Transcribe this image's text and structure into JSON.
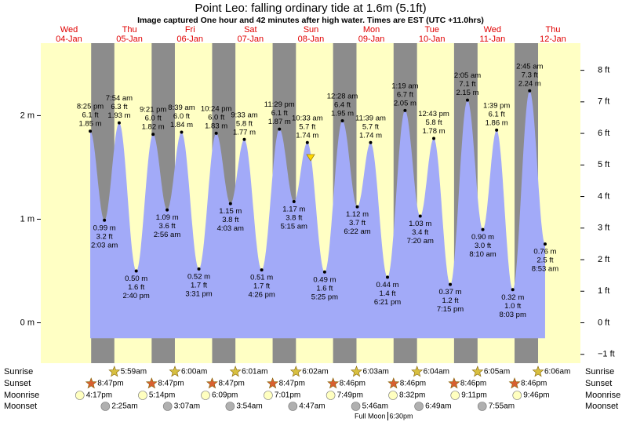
{
  "chart_data": {
    "type": "tide",
    "title": "Point Leo: falling  ordinary tide at 1.6m (5.1ft)",
    "subtitle": "Image captured One hour and 42 minutes after high water. Times are EST (UTC +11.0hrs)",
    "xlim": [
      0.8,
      214.9
    ],
    "ylim": [
      -0.39,
      2.7
    ],
    "yticks": [
      {
        "value": 0,
        "label": "0 m"
      },
      {
        "value": 1,
        "label": "1 m"
      },
      {
        "value": 2,
        "label": "2 m"
      }
    ],
    "y2lim": [
      -1.28,
      8.86
    ],
    "y2ticks": [
      {
        "value": -1,
        "label": "−1 ft"
      },
      {
        "value": 0,
        "label": "0 ft"
      },
      {
        "value": 1,
        "label": "1 ft"
      },
      {
        "value": 2,
        "label": "2 ft"
      },
      {
        "value": 3,
        "label": "3 ft"
      },
      {
        "value": 4,
        "label": "4 ft"
      },
      {
        "value": 5,
        "label": "5 ft"
      },
      {
        "value": 6,
        "label": "6 ft"
      },
      {
        "value": 7,
        "label": "7 ft"
      },
      {
        "value": 8,
        "label": "8 ft"
      }
    ],
    "row_labels": [
      "Sunrise",
      "Sunset",
      "Moonrise",
      "Moonset"
    ],
    "days": [
      {
        "weekday": "Wed",
        "date": "04-Jan",
        "sunrise": null,
        "sunset": "8:47pm",
        "moonrise": "4:17pm",
        "moonset": null,
        "tides": [
          {
            "time": "8:25 pm",
            "height_m": {
              "value": 1.85,
              "label": "1.85 m"
            },
            "height_ft": {
              "value": 6.1,
              "label": "6.1 ft"
            }
          }
        ]
      },
      {
        "weekday": "Thu",
        "date": "05-Jan",
        "sunrise": "5:59am",
        "sunset": "8:47pm",
        "moonrise": "5:14pm",
        "moonset": "2:25am",
        "tides": [
          {
            "time": "2:03 am",
            "height_m": {
              "value": 0.99,
              "label": "0.99 m"
            },
            "height_ft": {
              "value": 3.2,
              "label": "3.2 ft"
            }
          },
          {
            "time": "7:54 am",
            "height_m": {
              "value": 1.93,
              "label": "1.93 m"
            },
            "height_ft": {
              "value": 6.3,
              "label": "6.3 ft"
            }
          },
          {
            "time": "2:40 pm",
            "height_m": {
              "value": 0.5,
              "label": "0.50 m"
            },
            "height_ft": {
              "value": 1.6,
              "label": "1.6 ft"
            }
          },
          {
            "time": "9:21 pm",
            "height_m": {
              "value": 1.82,
              "label": "1.82 m"
            },
            "height_ft": {
              "value": 6.0,
              "label": "6.0 ft"
            }
          }
        ]
      },
      {
        "weekday": "Fri",
        "date": "06-Jan",
        "sunrise": "6:00am",
        "sunset": "8:47pm",
        "moonrise": "6:09pm",
        "moonset": "3:07am",
        "tides": [
          {
            "time": "2:56 am",
            "height_m": {
              "value": 1.09,
              "label": "1.09 m"
            },
            "height_ft": {
              "value": 3.6,
              "label": "3.6 ft"
            }
          },
          {
            "time": "8:39 am",
            "height_m": {
              "value": 1.84,
              "label": "1.84 m"
            },
            "height_ft": {
              "value": 6.0,
              "label": "6.0 ft"
            }
          },
          {
            "time": "3:31 pm",
            "height_m": {
              "value": 0.52,
              "label": "0.52 m"
            },
            "height_ft": {
              "value": 1.7,
              "label": "1.7 ft"
            }
          },
          {
            "time": "10:24 pm",
            "height_m": {
              "value": 1.83,
              "label": "1.83 m"
            },
            "height_ft": {
              "value": 6.0,
              "label": "6.0 ft"
            }
          }
        ]
      },
      {
        "weekday": "Sat",
        "date": "07-Jan",
        "sunrise": "6:01am",
        "sunset": "8:47pm",
        "moonrise": "7:01pm",
        "moonset": "3:54am",
        "tides": [
          {
            "time": "4:03 am",
            "height_m": {
              "value": 1.15,
              "label": "1.15 m"
            },
            "height_ft": {
              "value": 3.8,
              "label": "3.8 ft"
            }
          },
          {
            "time": "9:33 am",
            "height_m": {
              "value": 1.77,
              "label": "1.77 m"
            },
            "height_ft": {
              "value": 5.8,
              "label": "5.8 ft"
            }
          },
          {
            "time": "4:26 pm",
            "height_m": {
              "value": 0.51,
              "label": "0.51 m"
            },
            "height_ft": {
              "value": 1.7,
              "label": "1.7 ft"
            }
          },
          {
            "time": "11:29 pm",
            "height_m": {
              "value": 1.87,
              "label": "1.87 m"
            },
            "height_ft": {
              "value": 6.1,
              "label": "6.1 ft"
            }
          }
        ]
      },
      {
        "weekday": "Sun",
        "date": "08-Jan",
        "sunrise": "6:02am",
        "sunset": "8:46pm",
        "moonrise": "7:49pm",
        "moonset": "4:47am",
        "tides": [
          {
            "time": "5:15 am",
            "height_m": {
              "value": 1.17,
              "label": "1.17 m"
            },
            "height_ft": {
              "value": 3.8,
              "label": "3.8 ft"
            }
          },
          {
            "time": "10:33 am",
            "height_m": {
              "value": 1.74,
              "label": "1.74 m"
            },
            "height_ft": {
              "value": 5.7,
              "label": "5.7 ft"
            }
          },
          {
            "time": "5:25 pm",
            "height_m": {
              "value": 0.49,
              "label": "0.49 m"
            },
            "height_ft": {
              "value": 1.6,
              "label": "1.6 ft"
            }
          }
        ]
      },
      {
        "weekday": "Mon",
        "date": "09-Jan",
        "sunrise": "6:03am",
        "sunset": "8:46pm",
        "moonrise": "8:32pm",
        "moonset": "5:46am",
        "phase": {
          "name": "Full Moon",
          "time": "6:30pm"
        },
        "tides": [
          {
            "time": "12:28 am",
            "height_m": {
              "value": 1.95,
              "label": "1.95 m"
            },
            "height_ft": {
              "value": 6.4,
              "label": "6.4 ft"
            }
          },
          {
            "time": "6:22 am",
            "height_m": {
              "value": 1.12,
              "label": "1.12 m"
            },
            "height_ft": {
              "value": 3.7,
              "label": "3.7 ft"
            }
          },
          {
            "time": "11:39 am",
            "height_m": {
              "value": 1.74,
              "label": "1.74 m"
            },
            "height_ft": {
              "value": 5.7,
              "label": "5.7 ft"
            }
          },
          {
            "time": "6:21 pm",
            "height_m": {
              "value": 0.44,
              "label": "0.44 m"
            },
            "height_ft": {
              "value": 1.4,
              "label": "1.4 ft"
            }
          }
        ]
      },
      {
        "weekday": "Tue",
        "date": "10-Jan",
        "sunrise": "6:04am",
        "sunset": "8:46pm",
        "moonrise": "9:11pm",
        "moonset": "6:49am",
        "tides": [
          {
            "time": "1:19 am",
            "height_m": {
              "value": 2.05,
              "label": "2.05 m"
            },
            "height_ft": {
              "value": 6.7,
              "label": "6.7 ft"
            }
          },
          {
            "time": "7:20 am",
            "height_m": {
              "value": 1.03,
              "label": "1.03 m"
            },
            "height_ft": {
              "value": 3.4,
              "label": "3.4 ft"
            }
          },
          {
            "time": "12:43 pm",
            "height_m": {
              "value": 1.78,
              "label": "1.78 m"
            },
            "height_ft": {
              "value": 5.8,
              "label": "5.8 ft"
            }
          },
          {
            "time": "7:15 pm",
            "height_m": {
              "value": 0.37,
              "label": "0.37 m"
            },
            "height_ft": {
              "value": 1.2,
              "label": "1.2 ft"
            }
          }
        ]
      },
      {
        "weekday": "Wed",
        "date": "11-Jan",
        "sunrise": "6:05am",
        "sunset": "8:46pm",
        "moonrise": "9:46pm",
        "moonset": "7:55am",
        "tides": [
          {
            "time": "2:05 am",
            "height_m": {
              "value": 2.15,
              "label": "2.15 m"
            },
            "height_ft": {
              "value": 7.1,
              "label": "7.1 ft"
            }
          },
          {
            "time": "8:10 am",
            "height_m": {
              "value": 0.9,
              "label": "0.90 m"
            },
            "height_ft": {
              "value": 3.0,
              "label": "3.0 ft"
            }
          },
          {
            "time": "1:39 pm",
            "height_m": {
              "value": 1.86,
              "label": "1.86 m"
            },
            "height_ft": {
              "value": 6.1,
              "label": "6.1 ft"
            }
          },
          {
            "time": "8:03 pm",
            "height_m": {
              "value": 0.32,
              "label": "0.32 m"
            },
            "height_ft": {
              "value": 1.0,
              "label": "1.0 ft"
            }
          }
        ]
      },
      {
        "weekday": "Thu",
        "date": "12-Jan",
        "sunrise": "6:06am",
        "sunset": null,
        "moonrise": null,
        "moonset": null,
        "tides": [
          {
            "time": "2:45 am",
            "height_m": {
              "value": 2.24,
              "label": "2.24 m"
            },
            "height_ft": {
              "value": 7.3,
              "label": "7.3 ft"
            }
          },
          {
            "time": "8:53 am",
            "height_m": {
              "value": 0.76,
              "label": "0.76 m"
            },
            "height_ft": {
              "value": 2.5,
              "label": "2.5 ft"
            }
          }
        ]
      }
    ]
  }
}
